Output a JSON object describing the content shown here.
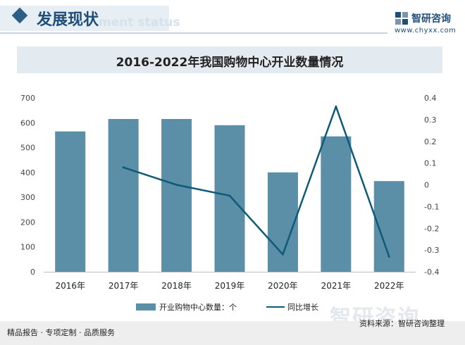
{
  "header": {
    "section_title": "发展现状",
    "section_subtitle": "ment status",
    "brand_name": "智研咨询",
    "brand_url": "www.chyxx.com"
  },
  "chart_title": "2016-2022年我国购物中心开业数量情况",
  "colors": {
    "bar": "#5b8ea7",
    "line": "#0e5a78",
    "title_bar": "#e3ebf1",
    "accent": "#1f4e79"
  },
  "chart_data": {
    "type": "bar",
    "categories": [
      "2016年",
      "2017年",
      "2018年",
      "2019年",
      "2020年",
      "2021年",
      "2022年"
    ],
    "series": [
      {
        "name": "开业购物中心数量：个",
        "type": "bar",
        "axis": "left",
        "values": [
          565,
          615,
          615,
          590,
          400,
          545,
          365
        ]
      },
      {
        "name": "同比增长",
        "type": "line",
        "axis": "right",
        "values": [
          null,
          0.08,
          0.0,
          -0.05,
          -0.32,
          0.36,
          -0.33
        ]
      }
    ],
    "left_axis": {
      "min": 0,
      "max": 700,
      "ticks": [
        "0",
        "100",
        "200",
        "300",
        "400",
        "500",
        "600",
        "700"
      ]
    },
    "right_axis": {
      "min": -0.4,
      "max": 0.4,
      "ticks": [
        "-0.4",
        "-0.3",
        "-0.2",
        "-0.1",
        "0",
        "0.1",
        "0.2",
        "0.3",
        "0.4"
      ]
    },
    "legend": [
      "开业购物中心数量：个",
      "同比增长"
    ],
    "legend_position": "bottom",
    "grid": false
  },
  "watermark": "智研咨询",
  "footer": {
    "left_text": "精品报告 · 专项定制 · 品质服务",
    "source": "资料来源：智研咨询整理"
  }
}
